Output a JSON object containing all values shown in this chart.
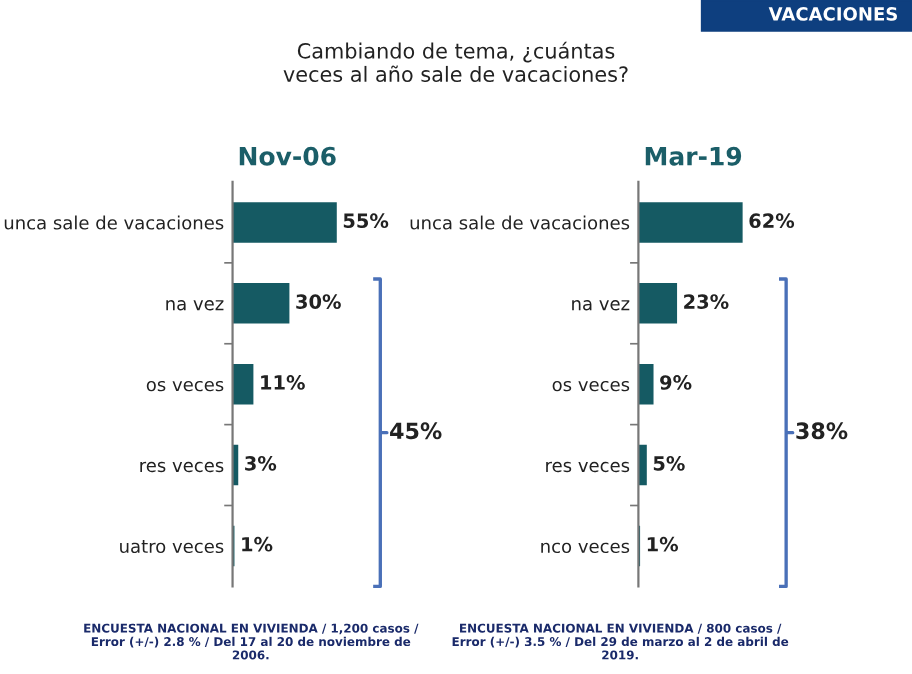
{
  "chart_data": [
    {
      "type": "bar",
      "orientation": "horizontal",
      "title": "Nov-06",
      "color": "#155a63",
      "grid": false,
      "legend": false,
      "tick_labels": "y",
      "categories": [
        "unca sale de vacaciones",
        "na vez",
        "os veces",
        "res veces",
        "uatro veces"
      ],
      "values": [
        55,
        30,
        11,
        3,
        1
      ],
      "value_labels": [
        "55%",
        "30%",
        "11%",
        "3%",
        "1%"
      ],
      "annotations": [
        "VACACIONES",
        "Cambiando de tema, ¿cuántas veces al año sale de vacaciones?",
        "45%",
        "ENCUESTA NACIONAL EN VIVIENDA / 1,200 casos / Error (+/-) 2.8 % / Del 17 al 20 de noviembre de 2006."
      ]
    },
    {
      "type": "bar",
      "orientation": "horizontal",
      "title": "Mar-19",
      "color": "#155a63",
      "grid": false,
      "legend": false,
      "tick_labels": "y",
      "categories": [
        "unca sale de vacaciones",
        "na vez",
        "os veces",
        "res veces",
        "nco veces"
      ],
      "values": [
        62,
        23,
        9,
        5,
        1
      ],
      "value_labels": [
        "62%",
        "23%",
        "9%",
        "5%",
        "1%"
      ],
      "annotations": [
        "38%",
        "ENCUESTA NACIONAL EN VIVIENDA / 800 casos / Error (+/-) 3.5 % / Del 29 de marzo al 2 de abril de 2019."
      ]
    }
  ]
}
